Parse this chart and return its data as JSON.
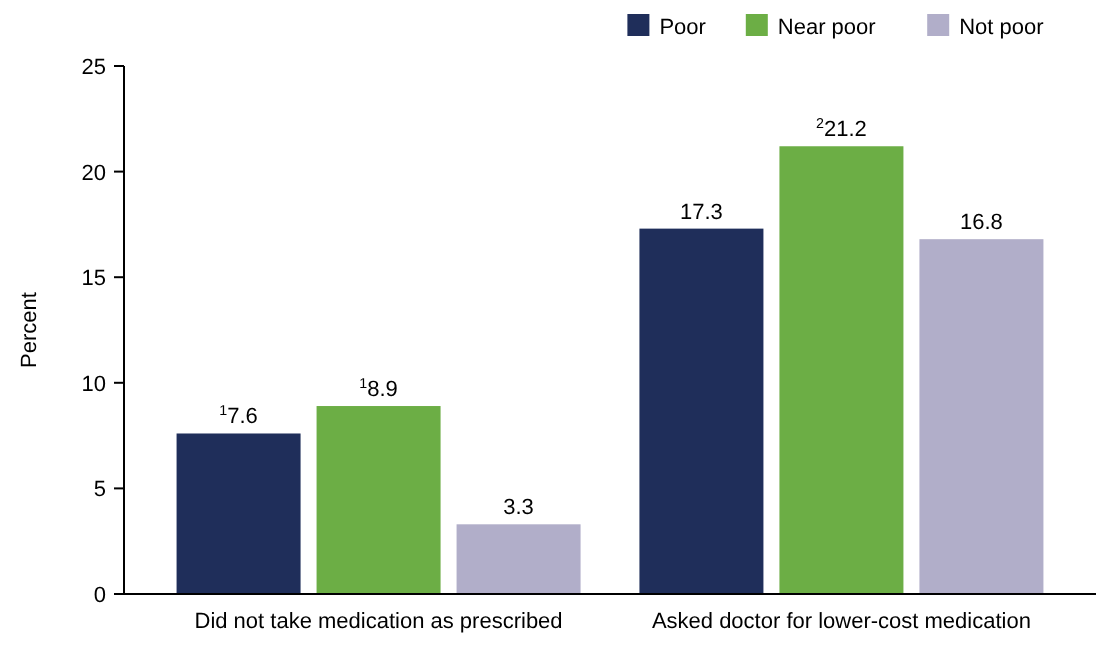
{
  "chart_data": {
    "type": "bar",
    "ylabel": "Percent",
    "categories": [
      "Did not take medication as prescribed",
      "Asked doctor for lower-cost medication"
    ],
    "series": [
      {
        "name": "Poor",
        "color": "#1f2e5a",
        "values": [
          7.6,
          17.3
        ],
        "value_labels": [
          "$^{1}$7.6",
          "17.3"
        ]
      },
      {
        "name": "Near poor",
        "color": "#6cae45",
        "values": [
          8.9,
          21.2
        ],
        "value_labels": [
          "$^{1}$8.9",
          "$^{2}$21.2"
        ]
      },
      {
        "name": "Not poor",
        "color": "#b1aec9",
        "values": [
          3.3,
          16.8
        ],
        "value_labels": [
          "3.3",
          "16.8"
        ]
      }
    ],
    "ylim": [
      0,
      25
    ],
    "yticks": [
      0,
      5,
      10,
      15,
      20,
      25
    ],
    "legend": "top right"
  }
}
